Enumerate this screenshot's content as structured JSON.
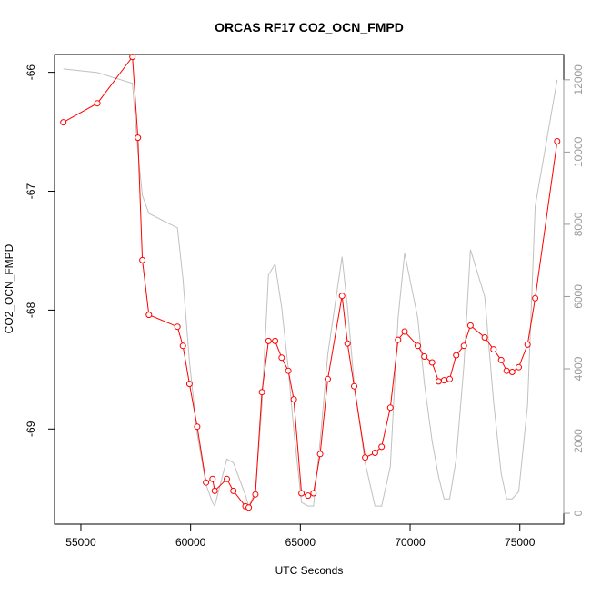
{
  "chart_data": {
    "type": "line",
    "title": "ORCAS RF17 CO2_OCN_FMPD",
    "xlabel": "UTC Seconds",
    "ylabel": "CO2_OCN_FMPD",
    "xlim": [
      53800,
      77000
    ],
    "ylim": [
      -69.8,
      -65.85
    ],
    "y2lim": [
      -300,
      12700
    ],
    "x_ticks": [
      55000,
      60000,
      65000,
      70000,
      75000
    ],
    "y_ticks": [
      -69,
      -68,
      -67,
      -66
    ],
    "y2_ticks": [
      0,
      2000,
      4000,
      6000,
      8000,
      10000,
      12000
    ],
    "series": [
      {
        "role": "primary",
        "color": "#ff0000",
        "marker": "open-circle",
        "x": [
          54200,
          55750,
          57350,
          57600,
          57800,
          58100,
          59400,
          59650,
          59950,
          60300,
          60700,
          61000,
          61100,
          61650,
          61950,
          62500,
          62650,
          62950,
          63250,
          63550,
          63850,
          64150,
          64450,
          64700,
          65050,
          65350,
          65600,
          65900,
          66250,
          66900,
          67150,
          67450,
          67950,
          68400,
          68700,
          69100,
          69450,
          69750,
          70350,
          70650,
          71000,
          71300,
          71550,
          71800,
          72100,
          72450,
          72750,
          73400,
          73800,
          74150,
          74400,
          74650,
          74950,
          75350,
          75700,
          76700
        ],
        "y": [
          -66.42,
          -66.26,
          -65.87,
          -66.55,
          -67.58,
          -68.04,
          -68.14,
          -68.3,
          -68.62,
          -68.98,
          -69.45,
          -69.42,
          -69.52,
          -69.42,
          -69.52,
          -69.65,
          -69.66,
          -69.55,
          -68.69,
          -68.26,
          -68.26,
          -68.4,
          -68.51,
          -68.75,
          -69.54,
          -69.56,
          -69.54,
          -69.21,
          -68.58,
          -67.88,
          -68.28,
          -68.64,
          -69.24,
          -69.2,
          -69.15,
          -68.82,
          -68.25,
          -68.18,
          -68.3,
          -68.39,
          -68.44,
          -68.6,
          -68.59,
          -68.58,
          -68.38,
          -68.3,
          -68.13,
          -68.23,
          -68.33,
          -68.42,
          -68.51,
          -68.52,
          -68.48,
          -68.29,
          -67.9,
          -66.58
        ]
      },
      {
        "role": "secondary",
        "axis": "right",
        "color": "#c0c0c0",
        "x": [
          54200,
          55750,
          57350,
          57600,
          57800,
          58100,
          59400,
          59650,
          59950,
          60300,
          60700,
          61000,
          61100,
          61650,
          61950,
          62500,
          62650,
          62950,
          63250,
          63550,
          63850,
          64150,
          64450,
          64700,
          65050,
          65350,
          65600,
          65900,
          66250,
          66900,
          67150,
          67450,
          67950,
          68400,
          68700,
          69100,
          69450,
          69750,
          70350,
          70650,
          71000,
          71300,
          71550,
          71800,
          72100,
          72450,
          72750,
          73400,
          73800,
          74150,
          74400,
          74650,
          74950,
          75350,
          75700,
          76700
        ],
        "y": [
          12300,
          12200,
          11900,
          10000,
          8800,
          8300,
          7900,
          6500,
          4200,
          2200,
          800,
          300,
          200,
          1500,
          1400,
          500,
          200,
          600,
          3000,
          6600,
          6900,
          5700,
          4000,
          2300,
          300,
          200,
          200,
          2000,
          4400,
          7100,
          5700,
          3600,
          1400,
          200,
          200,
          1300,
          5400,
          7200,
          5400,
          3600,
          2000,
          1000,
          400,
          400,
          1500,
          4100,
          7300,
          6000,
          3100,
          1100,
          400,
          400,
          600,
          3000,
          8500,
          12000
        ]
      }
    ]
  }
}
